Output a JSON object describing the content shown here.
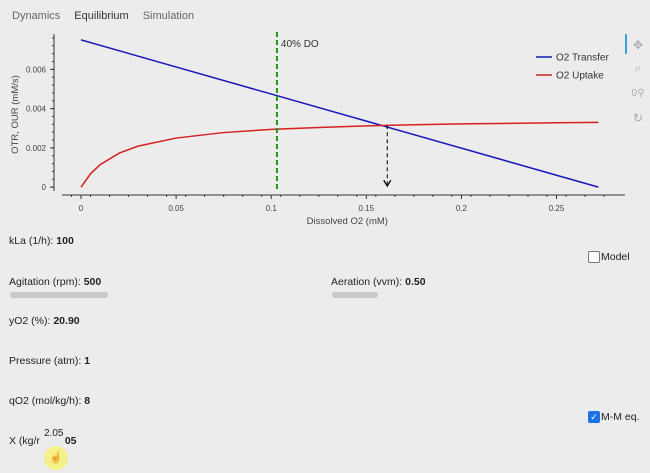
{
  "tabs": [
    {
      "label": "Dynamics",
      "active": false
    },
    {
      "label": "Equilibrium",
      "active": true
    },
    {
      "label": "Simulation",
      "active": false
    }
  ],
  "toolbar": [
    "pan-icon",
    "zoom-icon",
    "box-zoom-icon",
    "reset-icon"
  ],
  "chart_data": {
    "type": "line",
    "xlabel": "Dissolved O2 (mM)",
    "ylabel": "OTR, OUR (mM/s)",
    "xlim": [
      -0.01,
      0.286
    ],
    "ylim": [
      -0.0004,
      0.0078
    ],
    "xticks": [
      0,
      0.05,
      0.1,
      0.15,
      0.2,
      0.25
    ],
    "xtick_labels": [
      "0",
      "0.05",
      "0.1",
      "0.15",
      "0.2",
      "0.25"
    ],
    "yticks": [
      0,
      0.002,
      0.004,
      0.006
    ],
    "ytick_labels": [
      "0",
      "0.002",
      "0.004",
      "0.006"
    ],
    "legend_position": "top-right",
    "series": [
      {
        "name": "O2 Transfer",
        "color": "#1a1ab8",
        "x": [
          0,
          0.272
        ],
        "y": [
          0.0075,
          0
        ]
      },
      {
        "name": "O2 Uptake",
        "color": "#d42020",
        "x": [
          0,
          0.005,
          0.01,
          0.02,
          0.03,
          0.05,
          0.075,
          0.1,
          0.125,
          0.15,
          0.175,
          0.2,
          0.225,
          0.25,
          0.272
        ],
        "y": [
          0,
          0.00068,
          0.00114,
          0.00173,
          0.00209,
          0.0025,
          0.00278,
          0.00294,
          0.00304,
          0.00312,
          0.00318,
          0.00322,
          0.00325,
          0.00328,
          0.0033
        ]
      }
    ],
    "annotations": [
      {
        "type": "vline",
        "x": 0.103,
        "label": "40% DO",
        "color": "#1a9a1a"
      },
      {
        "type": "arrow",
        "x": 0.161,
        "y_from": 0.00315,
        "y_to": 0,
        "color": "#000000"
      }
    ]
  },
  "controls": {
    "kla": {
      "label": "kLa (1/h):",
      "value": "100"
    },
    "agitation": {
      "label": "Agitation (rpm):",
      "value": "500"
    },
    "aeration": {
      "label": "Aeration (vvm):",
      "value": "0.50"
    },
    "yo2": {
      "label": "yO2 (%):",
      "value": "20.90"
    },
    "pressure": {
      "label": "Pressure (atm):",
      "value": "1"
    },
    "qo2": {
      "label": "qO2 (mol/kg/h):",
      "value": "8"
    },
    "x": {
      "label": "X (kg/r",
      "value": "05",
      "tooltip": "2.05"
    },
    "model": {
      "label": "Model",
      "checked": false
    },
    "mm": {
      "label": "M-M eq.",
      "checked": true
    }
  }
}
